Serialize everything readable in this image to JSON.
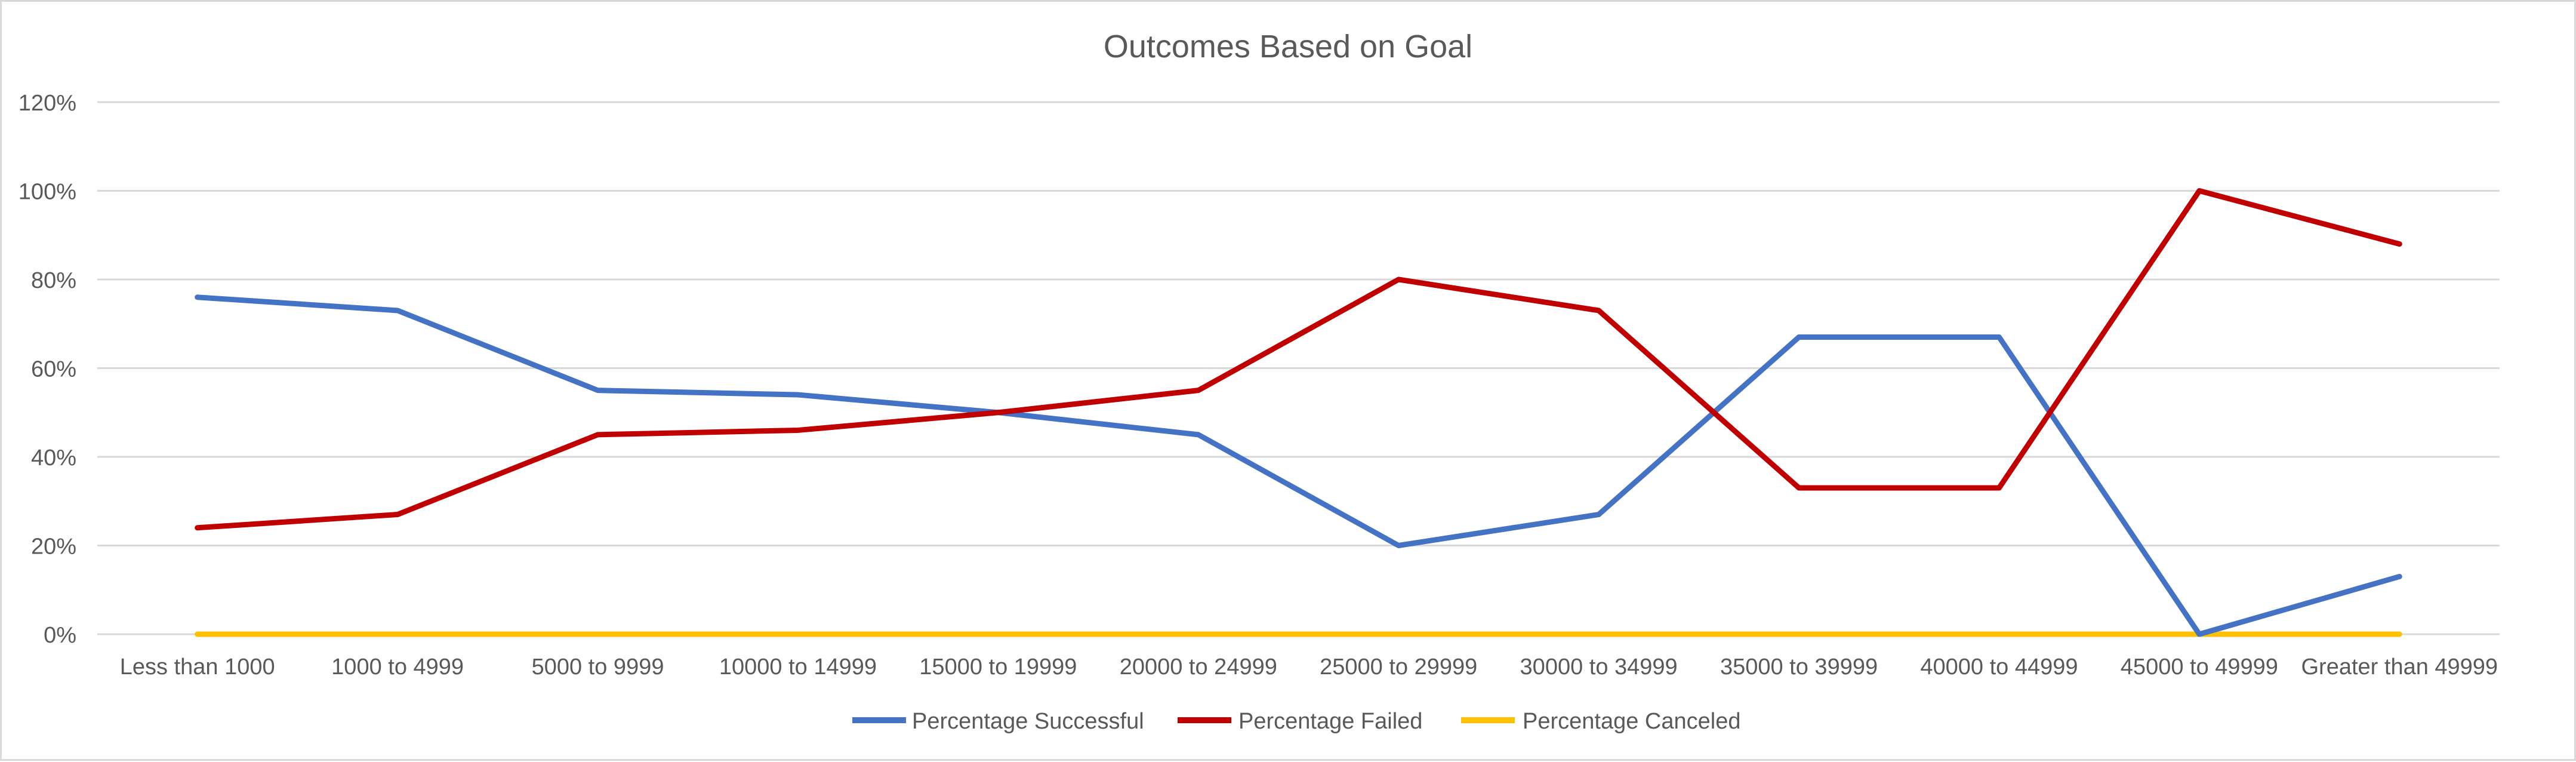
{
  "chart_data": {
    "type": "line",
    "title": "Outcomes Based on Goal",
    "xlabel": "",
    "ylabel": "",
    "categories": [
      "Less than 1000",
      "1000 to 4999",
      "5000 to 9999",
      "10000 to 14999",
      "15000 to 19999",
      "20000 to 24999",
      "25000 to 29999",
      "30000 to 34999",
      "35000 to 39999",
      "40000 to 44999",
      "45000 to 49999",
      "Greater than 49999"
    ],
    "ylim": [
      0,
      1.2
    ],
    "yticks": [
      0,
      0.2,
      0.4,
      0.6,
      0.8,
      1.0,
      1.2
    ],
    "ytick_labels": [
      "0%",
      "20%",
      "40%",
      "60%",
      "80%",
      "100%",
      "120%"
    ],
    "grid": true,
    "legend_position": "bottom",
    "series": [
      {
        "name": "Percentage Successful",
        "color": "#4472c4",
        "values": [
          0.76,
          0.73,
          0.55,
          0.54,
          0.5,
          0.45,
          0.2,
          0.27,
          0.67,
          0.67,
          0.0,
          0.13
        ]
      },
      {
        "name": "Percentage Failed",
        "color": "#c00000",
        "values": [
          0.24,
          0.27,
          0.45,
          0.46,
          0.5,
          0.55,
          0.8,
          0.73,
          0.33,
          0.33,
          1.0,
          0.88
        ]
      },
      {
        "name": "Percentage Canceled",
        "color": "#ffc000",
        "values": [
          0,
          0,
          0,
          0,
          0,
          0,
          0,
          0,
          0,
          0,
          0,
          0
        ]
      }
    ]
  }
}
